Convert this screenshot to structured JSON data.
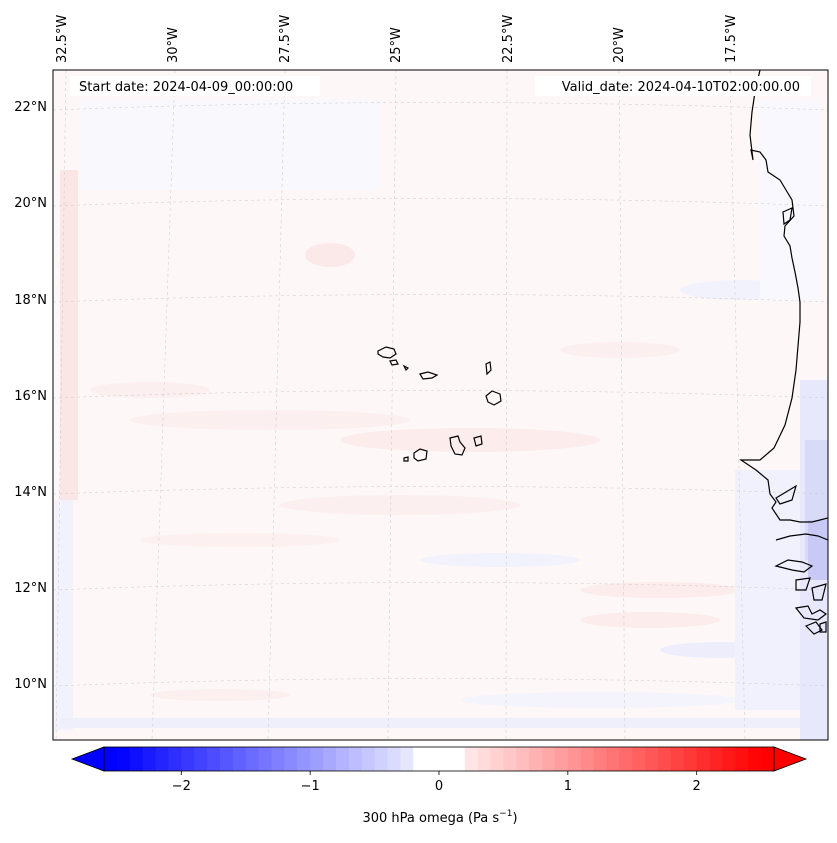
{
  "header": {
    "start_date": "Start date: 2024-04-09_00:00:00",
    "valid_date": "Valid_date: 2024-04-10T02:00:00.00"
  },
  "map": {
    "lon_labels": [
      "32.5°W",
      "30°W",
      "27.5°W",
      "25°W",
      "22.5°W",
      "20°W",
      "17.5°W"
    ],
    "lat_labels": [
      "22°N",
      "20°N",
      "18°N",
      "16°N",
      "14°N",
      "12°N",
      "10°N"
    ],
    "field": "300 hPa omega",
    "gridlines": true
  },
  "colorbar": {
    "ticks": [
      "−2",
      "−1",
      "0",
      "1",
      "2"
    ],
    "tick_values": [
      -2,
      -1,
      0,
      1,
      2
    ],
    "range": [
      -2.6,
      2.6
    ],
    "title_main": "300 hPa omega (Pa s",
    "title_sup": "−1",
    "title_end": ")",
    "colors": {
      "negative_end": "#0000ff",
      "zero": "#ffffff",
      "positive_end": "#ff0000"
    }
  }
}
